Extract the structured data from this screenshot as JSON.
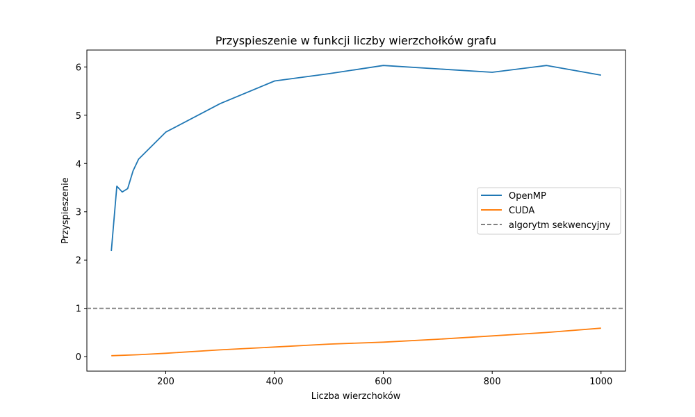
{
  "chart_data": {
    "type": "line",
    "title": "Przyspieszenie w funkcji liczby wierzchołków grafu",
    "xlabel": "Liczba wierzchoków",
    "ylabel": "Przyspieszenie",
    "xlim": [
      55,
      1045
    ],
    "ylim": [
      -0.3,
      6.35
    ],
    "xticks": [
      200,
      400,
      600,
      800,
      1000
    ],
    "yticks": [
      0,
      1,
      2,
      3,
      4,
      5,
      6
    ],
    "grid": false,
    "legend_position": "center-right",
    "series": [
      {
        "name": "OpenMP",
        "color": "#1f77b4",
        "style": "solid",
        "x": [
          100,
          110,
          120,
          130,
          140,
          150,
          200,
          300,
          400,
          500,
          600,
          700,
          800,
          900,
          1000
        ],
        "y": [
          2.19,
          3.53,
          3.41,
          3.48,
          3.85,
          4.09,
          4.65,
          5.24,
          5.71,
          5.86,
          6.03,
          5.96,
          5.89,
          6.03,
          5.83
        ]
      },
      {
        "name": "CUDA",
        "color": "#ff7f0e",
        "style": "solid",
        "x": [
          100,
          150,
          200,
          300,
          400,
          500,
          600,
          700,
          800,
          900,
          1000
        ],
        "y": [
          0.02,
          0.04,
          0.07,
          0.14,
          0.2,
          0.26,
          0.3,
          0.36,
          0.43,
          0.5,
          0.59
        ]
      },
      {
        "name": "algorytm sekwencyjny",
        "color": "#808080",
        "style": "dashed",
        "type": "hline",
        "y": 1
      }
    ]
  }
}
